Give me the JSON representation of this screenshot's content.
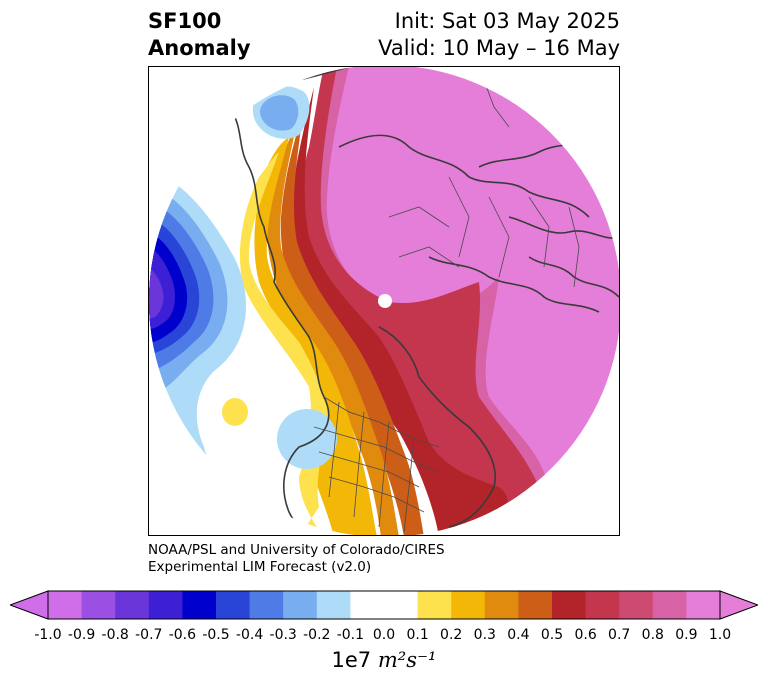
{
  "header": {
    "left_line1": "SF100",
    "left_line2": "Anomaly",
    "right_line1": "Init: Sat 03 May 2025",
    "right_line2": "Valid: 10 May – 16 May"
  },
  "credit": {
    "line1": "NOAA/PSL and University of Colorado/CIRES",
    "line2": "Experimental LIM Forecast (v2.0)"
  },
  "colorbar": {
    "levels": [
      -1.0,
      -0.9,
      -0.8,
      -0.7,
      -0.6,
      -0.5,
      -0.4,
      -0.3,
      -0.2,
      -0.1,
      0.0,
      0.1,
      0.2,
      0.3,
      0.4,
      0.5,
      0.6,
      0.7,
      0.8,
      0.9,
      1.0
    ],
    "tick_labels": [
      "-1.0",
      "-0.9",
      "-0.8",
      "-0.7",
      "-0.6",
      "-0.5",
      "-0.4",
      "-0.3",
      "-0.2",
      "-0.1",
      "0.0",
      "0.1",
      "0.2",
      "0.3",
      "0.4",
      "0.5",
      "0.6",
      "0.7",
      "0.8",
      "0.9",
      "1.0"
    ],
    "colors": [
      "#cf6ee8",
      "#9c4fe3",
      "#6a35d9",
      "#3d1fd6",
      "#0000cc",
      "#2845d8",
      "#4f7be6",
      "#78aef0",
      "#aedbf8",
      "#ffffff",
      "#ffffff",
      "#fee24d",
      "#f2b707",
      "#e08b0e",
      "#cd5e18",
      "#b3242a",
      "#c3364e",
      "#cd4b72",
      "#d862a6",
      "#e57ed9"
    ],
    "extend_low_color": "#cf6ee8",
    "extend_high_color": "#e57ed9",
    "units_prefix": "1e7",
    "units_math": "m²s⁻¹"
  }
}
